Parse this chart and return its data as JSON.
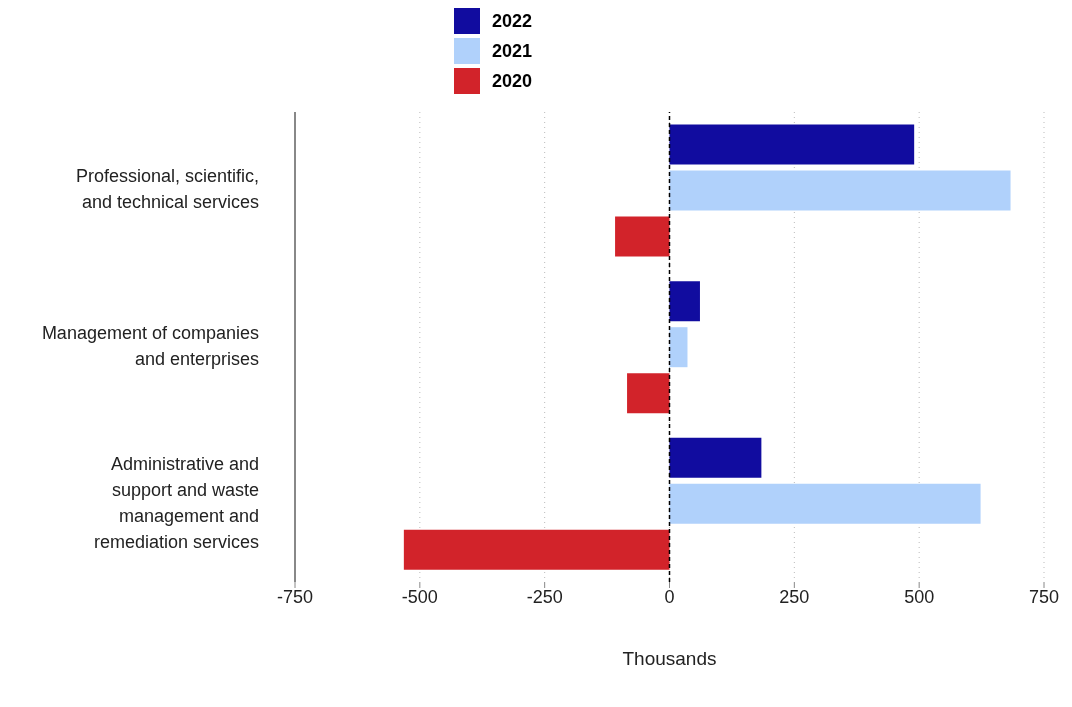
{
  "chart_data": {
    "type": "bar",
    "orientation": "horizontal",
    "xlabel": "Thousands",
    "categories": [
      "Professional, scientific, and technical services",
      "Management of companies and enterprises",
      "Administrative and support and waste management and remediation services"
    ],
    "series": [
      {
        "name": "2022",
        "color": "#110c9f",
        "values": [
          490,
          61,
          184
        ]
      },
      {
        "name": "2021",
        "color": "#b0d1fb",
        "values": [
          683,
          36,
          623
        ]
      },
      {
        "name": "2020",
        "color": "#d2232a",
        "values": [
          -109,
          -85,
          -532
        ]
      }
    ],
    "xlim": [
      -750,
      750
    ],
    "xticks": [
      -750,
      -500,
      -250,
      0,
      250,
      500,
      750
    ],
    "grid": "x",
    "legend": "top",
    "ref_lines": [
      {
        "axis": "x",
        "value": 0,
        "color": "#000000",
        "line_style": "dashed"
      }
    ]
  }
}
